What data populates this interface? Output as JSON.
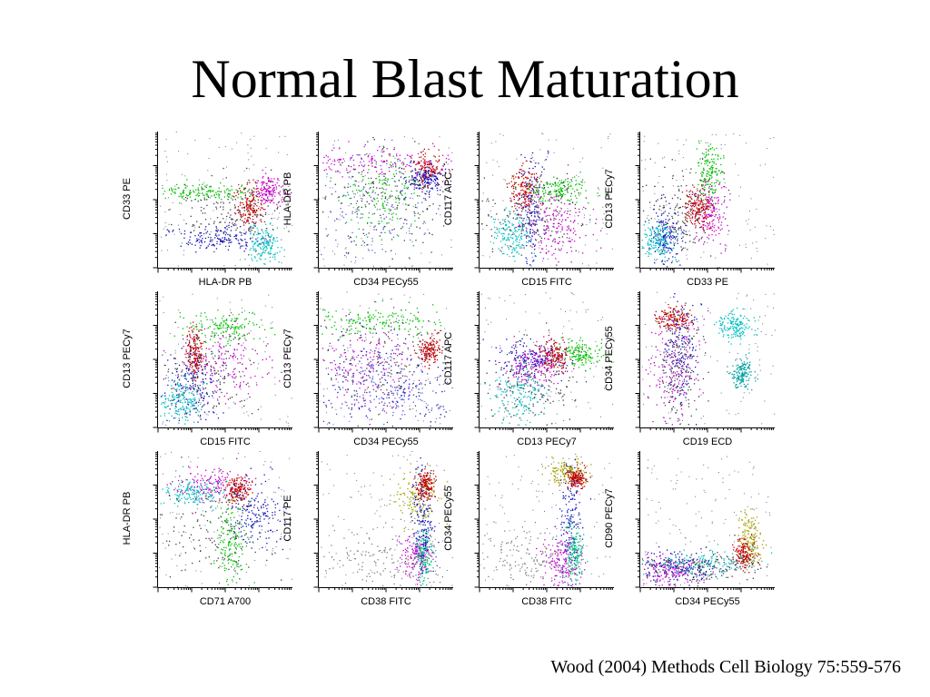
{
  "slide": {
    "title": "Normal Blast Maturation",
    "citation": "Wood (2004) Methods Cell Biology 75:559-576"
  },
  "chart_data": [
    {
      "type": "scatter",
      "xlabel": "HLA-DR PB",
      "ylabel": "CD33 PE",
      "populations": [
        {
          "color": "#00c000",
          "cx": 0.38,
          "cy": 0.56,
          "sx": 0.2,
          "sy": 0.03
        },
        {
          "color": "#cc00cc",
          "cx": 0.82,
          "cy": 0.57,
          "sx": 0.07,
          "sy": 0.06
        },
        {
          "color": "#c00000",
          "cx": 0.68,
          "cy": 0.45,
          "sx": 0.05,
          "sy": 0.07
        },
        {
          "color": "#1010c0",
          "cx": 0.45,
          "cy": 0.22,
          "sx": 0.18,
          "sy": 0.05
        },
        {
          "color": "#00c0c0",
          "cx": 0.78,
          "cy": 0.18,
          "sx": 0.06,
          "sy": 0.07
        },
        {
          "color": "#404040",
          "cx": 0.55,
          "cy": 0.4,
          "sx": 0.2,
          "sy": 0.12
        }
      ]
    },
    {
      "type": "scatter",
      "xlabel": "CD34 PECy55",
      "ylabel": "HLA-DR PB",
      "populations": [
        {
          "color": "#cc00cc",
          "cx": 0.45,
          "cy": 0.78,
          "sx": 0.3,
          "sy": 0.05
        },
        {
          "color": "#c00000",
          "cx": 0.8,
          "cy": 0.72,
          "sx": 0.06,
          "sy": 0.06
        },
        {
          "color": "#1010c0",
          "cx": 0.78,
          "cy": 0.65,
          "sx": 0.08,
          "sy": 0.05
        },
        {
          "color": "#00c000",
          "cx": 0.45,
          "cy": 0.55,
          "sx": 0.15,
          "sy": 0.15
        },
        {
          "color": "#6060e0",
          "cx": 0.4,
          "cy": 0.45,
          "sx": 0.25,
          "sy": 0.2
        },
        {
          "color": "#404040",
          "cx": 0.5,
          "cy": 0.5,
          "sx": 0.25,
          "sy": 0.2
        }
      ]
    },
    {
      "type": "scatter",
      "xlabel": "CD15 FITC",
      "ylabel": "CD117 APC",
      "populations": [
        {
          "color": "#00c0c0",
          "cx": 0.25,
          "cy": 0.25,
          "sx": 0.07,
          "sy": 0.08
        },
        {
          "color": "#1010c0",
          "cx": 0.38,
          "cy": 0.45,
          "sx": 0.05,
          "sy": 0.2
        },
        {
          "color": "#c00000",
          "cx": 0.33,
          "cy": 0.58,
          "sx": 0.05,
          "sy": 0.08
        },
        {
          "color": "#00c000",
          "cx": 0.58,
          "cy": 0.58,
          "sx": 0.12,
          "sy": 0.05
        },
        {
          "color": "#cc00cc",
          "cx": 0.55,
          "cy": 0.3,
          "sx": 0.12,
          "sy": 0.12
        },
        {
          "color": "#404040",
          "cx": 0.45,
          "cy": 0.4,
          "sx": 0.2,
          "sy": 0.15
        }
      ]
    },
    {
      "type": "scatter",
      "xlabel": "CD33 PE",
      "ylabel": "CD13 PECy7",
      "populations": [
        {
          "color": "#00c000",
          "cx": 0.5,
          "cy": 0.7,
          "sx": 0.05,
          "sy": 0.1
        },
        {
          "color": "#cc00cc",
          "cx": 0.52,
          "cy": 0.42,
          "sx": 0.06,
          "sy": 0.12
        },
        {
          "color": "#c00000",
          "cx": 0.42,
          "cy": 0.45,
          "sx": 0.05,
          "sy": 0.07
        },
        {
          "color": "#1010c0",
          "cx": 0.2,
          "cy": 0.25,
          "sx": 0.06,
          "sy": 0.1
        },
        {
          "color": "#00c0c0",
          "cx": 0.12,
          "cy": 0.2,
          "sx": 0.06,
          "sy": 0.07
        },
        {
          "color": "#404040",
          "cx": 0.32,
          "cy": 0.38,
          "sx": 0.12,
          "sy": 0.15
        }
      ]
    },
    {
      "type": "scatter",
      "xlabel": "CD15 FITC",
      "ylabel": "CD13 PECy7",
      "populations": [
        {
          "color": "#00c000",
          "cx": 0.5,
          "cy": 0.73,
          "sx": 0.15,
          "sy": 0.06
        },
        {
          "color": "#cc00cc",
          "cx": 0.5,
          "cy": 0.47,
          "sx": 0.18,
          "sy": 0.12
        },
        {
          "color": "#c00000",
          "cx": 0.27,
          "cy": 0.55,
          "sx": 0.03,
          "sy": 0.1
        },
        {
          "color": "#1010c0",
          "cx": 0.25,
          "cy": 0.3,
          "sx": 0.1,
          "sy": 0.12
        },
        {
          "color": "#00c0c0",
          "cx": 0.17,
          "cy": 0.2,
          "sx": 0.07,
          "sy": 0.08
        },
        {
          "color": "#404040",
          "cx": 0.35,
          "cy": 0.4,
          "sx": 0.18,
          "sy": 0.15
        }
      ]
    },
    {
      "type": "scatter",
      "xlabel": "CD34 PECy55",
      "ylabel": "CD13 PECy7",
      "populations": [
        {
          "color": "#00c000",
          "cx": 0.45,
          "cy": 0.78,
          "sx": 0.25,
          "sy": 0.06
        },
        {
          "color": "#c00000",
          "cx": 0.82,
          "cy": 0.57,
          "sx": 0.04,
          "sy": 0.05
        },
        {
          "color": "#cc00cc",
          "cx": 0.35,
          "cy": 0.45,
          "sx": 0.2,
          "sy": 0.15
        },
        {
          "color": "#1010c0",
          "cx": 0.45,
          "cy": 0.35,
          "sx": 0.25,
          "sy": 0.18
        },
        {
          "color": "#6060e0",
          "cx": 0.55,
          "cy": 0.25,
          "sx": 0.25,
          "sy": 0.15
        },
        {
          "color": "#404040",
          "cx": 0.5,
          "cy": 0.45,
          "sx": 0.28,
          "sy": 0.2
        }
      ]
    },
    {
      "type": "scatter",
      "xlabel": "CD13 PECy7",
      "ylabel": "CD117 APC",
      "populations": [
        {
          "color": "#00c000",
          "cx": 0.75,
          "cy": 0.55,
          "sx": 0.08,
          "sy": 0.05
        },
        {
          "color": "#c00000",
          "cx": 0.55,
          "cy": 0.53,
          "sx": 0.05,
          "sy": 0.05
        },
        {
          "color": "#1010c0",
          "cx": 0.35,
          "cy": 0.5,
          "sx": 0.12,
          "sy": 0.06
        },
        {
          "color": "#cc00cc",
          "cx": 0.4,
          "cy": 0.45,
          "sx": 0.12,
          "sy": 0.08
        },
        {
          "color": "#00c0c0",
          "cx": 0.28,
          "cy": 0.25,
          "sx": 0.1,
          "sy": 0.1
        },
        {
          "color": "#404040",
          "cx": 0.4,
          "cy": 0.35,
          "sx": 0.2,
          "sy": 0.15
        }
      ]
    },
    {
      "type": "scatter",
      "xlabel": "CD19 ECD",
      "ylabel": "CD34 PECy55",
      "populations": [
        {
          "color": "#c00000",
          "cx": 0.25,
          "cy": 0.8,
          "sx": 0.07,
          "sy": 0.04
        },
        {
          "color": "#1010c0",
          "cx": 0.3,
          "cy": 0.55,
          "sx": 0.06,
          "sy": 0.18
        },
        {
          "color": "#cc00cc",
          "cx": 0.25,
          "cy": 0.45,
          "sx": 0.1,
          "sy": 0.2
        },
        {
          "color": "#00c0c0",
          "cx": 0.7,
          "cy": 0.75,
          "sx": 0.06,
          "sy": 0.05
        },
        {
          "color": "#00a0a0",
          "cx": 0.75,
          "cy": 0.4,
          "sx": 0.04,
          "sy": 0.06
        },
        {
          "color": "#404040",
          "cx": 0.27,
          "cy": 0.45,
          "sx": 0.08,
          "sy": 0.2
        }
      ]
    },
    {
      "type": "scatter",
      "xlabel": "CD71 A700",
      "ylabel": "HLA-DR PB",
      "populations": [
        {
          "color": "#cc00cc",
          "cx": 0.4,
          "cy": 0.75,
          "sx": 0.13,
          "sy": 0.06
        },
        {
          "color": "#c00000",
          "cx": 0.58,
          "cy": 0.72,
          "sx": 0.05,
          "sy": 0.05
        },
        {
          "color": "#00c0c0",
          "cx": 0.25,
          "cy": 0.7,
          "sx": 0.12,
          "sy": 0.05
        },
        {
          "color": "#1010c0",
          "cx": 0.72,
          "cy": 0.55,
          "sx": 0.1,
          "sy": 0.12
        },
        {
          "color": "#00c000",
          "cx": 0.55,
          "cy": 0.35,
          "sx": 0.06,
          "sy": 0.15
        },
        {
          "color": "#404040",
          "cx": 0.35,
          "cy": 0.4,
          "sx": 0.25,
          "sy": 0.2
        }
      ]
    },
    {
      "type": "scatter",
      "xlabel": "CD38 FITC",
      "ylabel": "CD117 PE",
      "populations": [
        {
          "color": "#a0a000",
          "cx": 0.73,
          "cy": 0.65,
          "sx": 0.08,
          "sy": 0.1
        },
        {
          "color": "#cc00cc",
          "cx": 0.73,
          "cy": 0.22,
          "sx": 0.06,
          "sy": 0.08
        },
        {
          "color": "#00c080",
          "cx": 0.78,
          "cy": 0.25,
          "sx": 0.03,
          "sy": 0.1
        },
        {
          "color": "#1010c0",
          "cx": 0.77,
          "cy": 0.5,
          "sx": 0.04,
          "sy": 0.2
        },
        {
          "color": "#c00000",
          "cx": 0.79,
          "cy": 0.75,
          "sx": 0.03,
          "sy": 0.05
        },
        {
          "color": "#808080",
          "cx": 0.45,
          "cy": 0.2,
          "sx": 0.25,
          "sy": 0.12
        }
      ]
    },
    {
      "type": "scatter",
      "xlabel": "CD38 FITC",
      "ylabel": "CD34 PECy55",
      "populations": [
        {
          "color": "#a0a000",
          "cx": 0.65,
          "cy": 0.85,
          "sx": 0.07,
          "sy": 0.04
        },
        {
          "color": "#c00000",
          "cx": 0.72,
          "cy": 0.8,
          "sx": 0.04,
          "sy": 0.04
        },
        {
          "color": "#1010c0",
          "cx": 0.67,
          "cy": 0.45,
          "sx": 0.04,
          "sy": 0.25
        },
        {
          "color": "#cc00cc",
          "cx": 0.62,
          "cy": 0.2,
          "sx": 0.08,
          "sy": 0.1
        },
        {
          "color": "#00c080",
          "cx": 0.7,
          "cy": 0.25,
          "sx": 0.03,
          "sy": 0.1
        },
        {
          "color": "#808080",
          "cx": 0.4,
          "cy": 0.2,
          "sx": 0.2,
          "sy": 0.12
        }
      ]
    },
    {
      "type": "scatter",
      "xlabel": "CD34 PECy55",
      "ylabel": "CD90 PECy7",
      "populations": [
        {
          "color": "#a0a000",
          "cx": 0.82,
          "cy": 0.35,
          "sx": 0.04,
          "sy": 0.1
        },
        {
          "color": "#c00000",
          "cx": 0.77,
          "cy": 0.25,
          "sx": 0.04,
          "sy": 0.06
        },
        {
          "color": "#1010c0",
          "cx": 0.25,
          "cy": 0.15,
          "sx": 0.15,
          "sy": 0.05
        },
        {
          "color": "#cc00cc",
          "cx": 0.2,
          "cy": 0.12,
          "sx": 0.12,
          "sy": 0.05
        },
        {
          "color": "#00c0c0",
          "cx": 0.45,
          "cy": 0.18,
          "sx": 0.2,
          "sy": 0.05
        },
        {
          "color": "#404040",
          "cx": 0.4,
          "cy": 0.15,
          "sx": 0.25,
          "sy": 0.06
        }
      ]
    }
  ]
}
